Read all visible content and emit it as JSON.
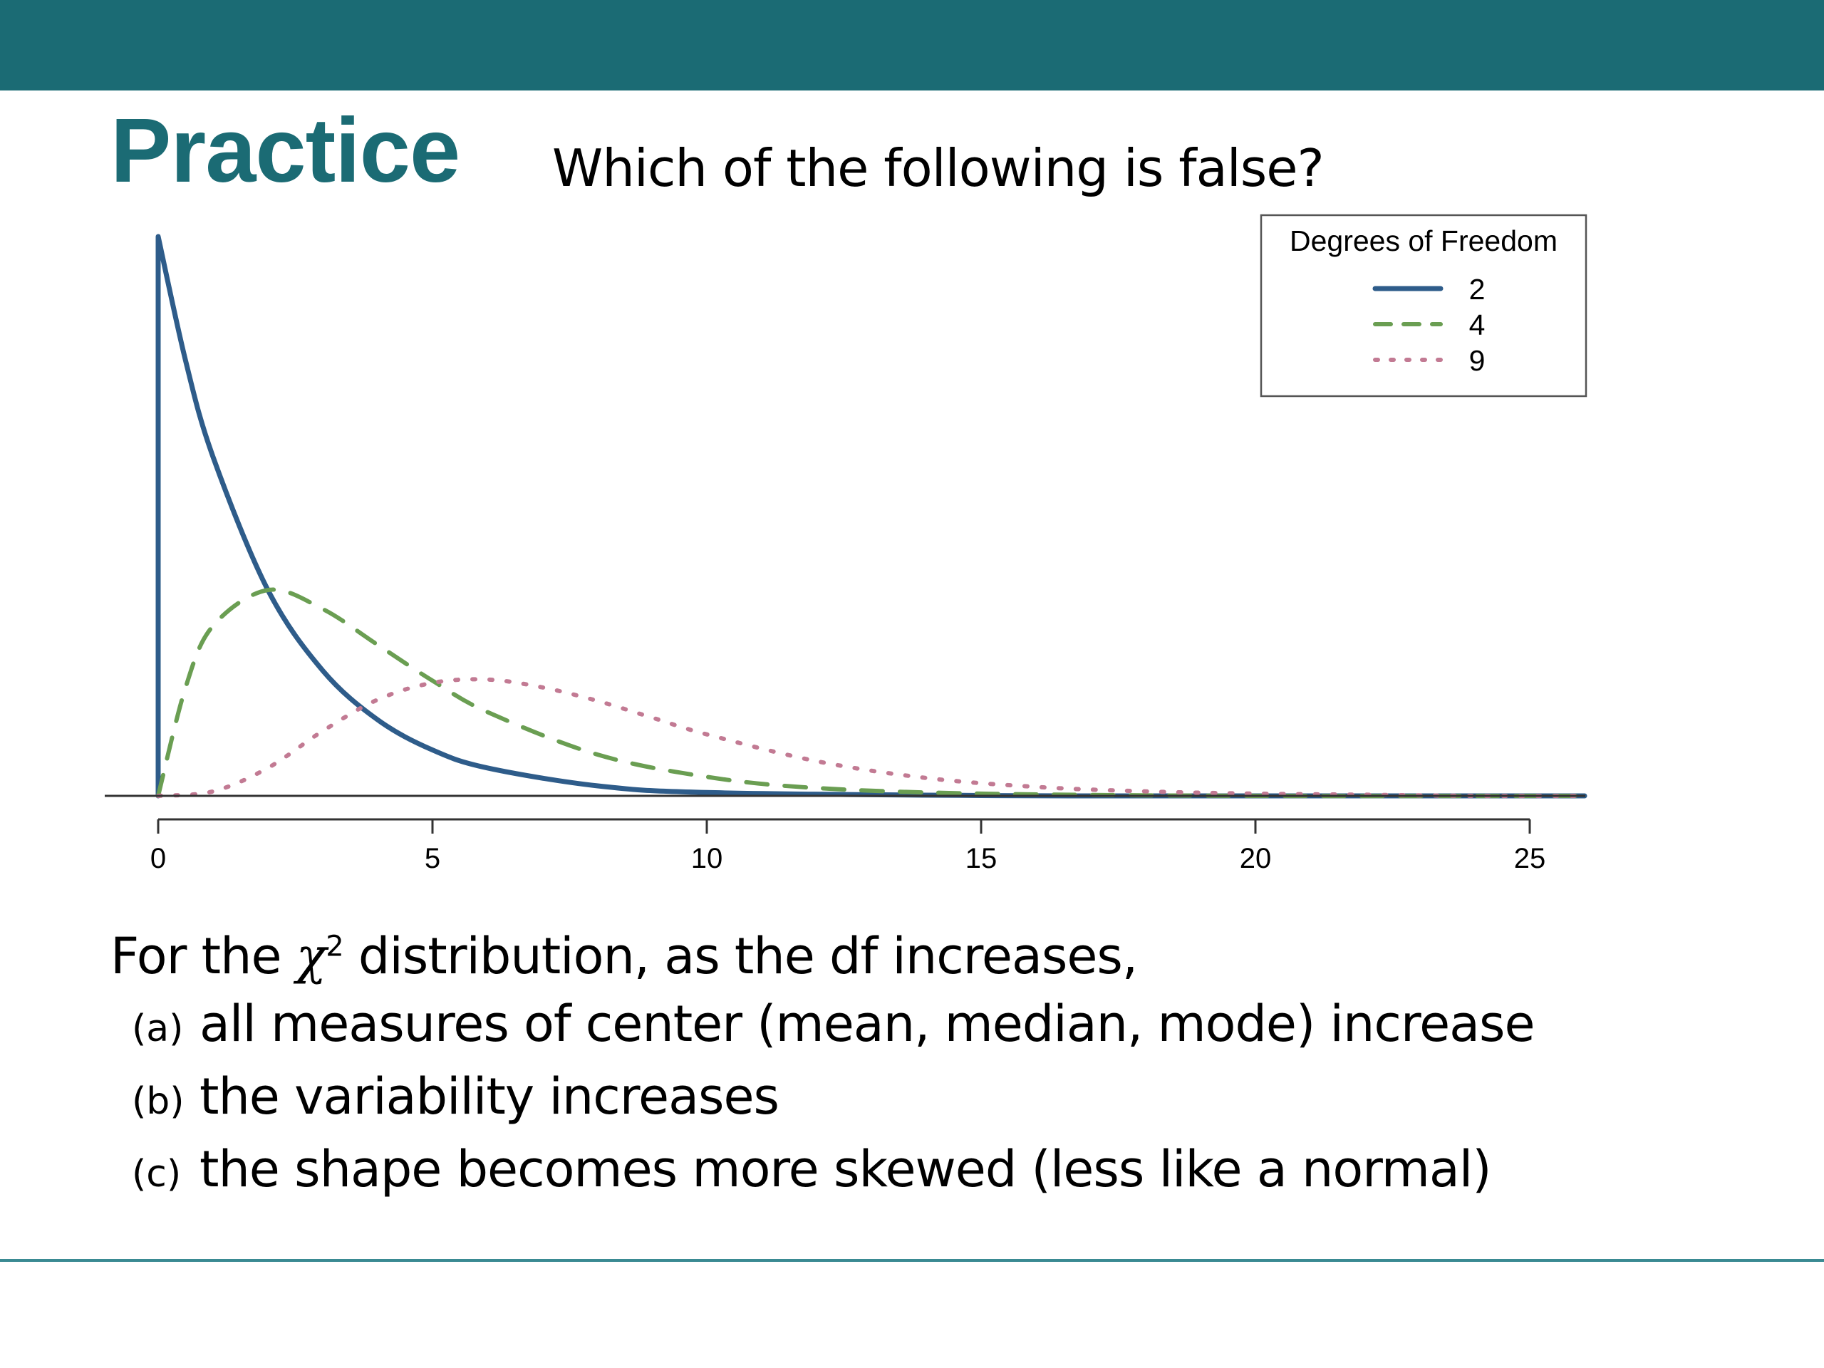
{
  "slide": {
    "title": "Practice",
    "question": "Which of the following is false?",
    "theme_color": "#1b6b74"
  },
  "body": {
    "lead_before": "For the ",
    "lead_symbol": "χ",
    "lead_superscript": "2",
    "lead_after": " distribution, as the df increases,",
    "options": [
      {
        "letter": "(a)",
        "text": "all measures of center (mean, median, mode) increase"
      },
      {
        "letter": "(b)",
        "text": "the variability increases"
      },
      {
        "letter": "(c)",
        "text": "the shape becomes more skewed (less like a normal)"
      }
    ]
  },
  "chart_data": {
    "type": "line",
    "title": "",
    "xlabel": "",
    "ylabel": "",
    "xlim": [
      0,
      26
    ],
    "ylim": [
      0,
      0.5
    ],
    "x_ticks": [
      0,
      5,
      10,
      15,
      20,
      25
    ],
    "grid": false,
    "legend": {
      "title": "Degrees of Freedom",
      "placement": "top-right"
    },
    "series": [
      {
        "name": "2",
        "color": "#2e5c8a",
        "dash": "solid",
        "x": [
          0,
          0.5,
          1,
          2,
          3,
          4,
          5,
          6,
          8,
          10,
          15,
          20,
          26
        ],
        "y": [
          0.5,
          0.389,
          0.303,
          0.184,
          0.112,
          0.068,
          0.041,
          0.025,
          0.009,
          0.003,
          0.0003,
          0.0,
          0.0
        ]
      },
      {
        "name": "4",
        "color": "#6a9e52",
        "dash": "dashed",
        "x": [
          0,
          0.5,
          1,
          2,
          3,
          4,
          5,
          6,
          8,
          10,
          12,
          15,
          20,
          26
        ],
        "y": [
          0,
          0.097,
          0.152,
          0.184,
          0.167,
          0.135,
          0.103,
          0.075,
          0.037,
          0.017,
          0.007,
          0.002,
          0.0,
          0.0
        ]
      },
      {
        "name": "9",
        "color": "#c27a93",
        "dash": "dotted",
        "x": [
          0,
          1,
          2,
          3,
          4,
          5,
          6,
          7,
          8,
          9,
          10,
          12,
          14,
          16,
          18,
          20,
          22,
          24,
          26
        ],
        "y": [
          0,
          0.004,
          0.025,
          0.058,
          0.086,
          0.101,
          0.104,
          0.097,
          0.085,
          0.07,
          0.055,
          0.031,
          0.016,
          0.008,
          0.004,
          0.002,
          0.001,
          0.0,
          0.0
        ]
      }
    ]
  }
}
